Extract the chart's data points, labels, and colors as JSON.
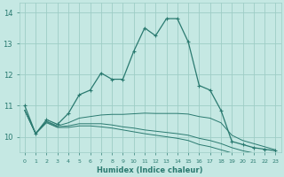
{
  "title": "",
  "xlabel": "Humidex (Indice chaleur)",
  "ylabel": "",
  "bg_color": "#c5e8e3",
  "grid_color": "#9ecdc6",
  "line_color": "#2a7a70",
  "xlim": [
    -0.5,
    23.5
  ],
  "ylim": [
    9.5,
    14.3
  ],
  "yticks": [
    10,
    11,
    12,
    13,
    14
  ],
  "xticks": [
    0,
    1,
    2,
    3,
    4,
    5,
    6,
    7,
    8,
    9,
    10,
    11,
    12,
    13,
    14,
    15,
    16,
    17,
    18,
    19,
    20,
    21,
    22,
    23
  ],
  "series": [
    {
      "x": [
        0,
        1,
        2,
        3,
        4,
        5,
        6,
        7,
        8,
        9,
        10,
        11,
        12,
        13,
        14,
        15,
        16,
        17,
        18,
        19,
        20,
        21,
        22,
        23
      ],
      "y": [
        11.0,
        10.1,
        10.55,
        10.4,
        10.75,
        11.35,
        11.5,
        12.05,
        11.85,
        11.85,
        12.75,
        13.5,
        13.25,
        13.8,
        13.8,
        13.05,
        11.65,
        11.5,
        10.85,
        9.85,
        9.75,
        9.65,
        9.6,
        9.55
      ],
      "marker": true
    },
    {
      "x": [
        0,
        1,
        2,
        3,
        4,
        5,
        6,
        7,
        8,
        9,
        10,
        11,
        12,
        13,
        14,
        15,
        16,
        17,
        18,
        19,
        20,
        21,
        22,
        23
      ],
      "y": [
        10.85,
        10.1,
        10.5,
        10.35,
        10.45,
        10.6,
        10.65,
        10.7,
        10.72,
        10.72,
        10.74,
        10.76,
        10.75,
        10.75,
        10.75,
        10.73,
        10.65,
        10.6,
        10.45,
        10.05,
        9.88,
        9.78,
        9.68,
        9.58
      ],
      "marker": false
    },
    {
      "x": [
        0,
        1,
        2,
        3,
        4,
        5,
        6,
        7,
        8,
        9,
        10,
        11,
        12,
        13,
        14,
        15,
        16,
        17,
        18,
        19,
        20,
        21,
        22,
        23
      ],
      "y": [
        10.85,
        10.1,
        10.48,
        10.32,
        10.35,
        10.42,
        10.42,
        10.42,
        10.38,
        10.32,
        10.28,
        10.22,
        10.18,
        10.14,
        10.1,
        10.05,
        9.95,
        9.88,
        9.78,
        9.65,
        9.55,
        9.48,
        9.42,
        9.38
      ],
      "marker": false
    },
    {
      "x": [
        0,
        1,
        2,
        3,
        4,
        5,
        6,
        7,
        8,
        9,
        10,
        11,
        12,
        13,
        14,
        15,
        16,
        17,
        18,
        19,
        20,
        21,
        22,
        23
      ],
      "y": [
        10.85,
        10.1,
        10.45,
        10.3,
        10.3,
        10.35,
        10.35,
        10.32,
        10.28,
        10.22,
        10.16,
        10.1,
        10.05,
        10.0,
        9.95,
        9.88,
        9.75,
        9.68,
        9.58,
        9.48,
        9.4,
        9.32,
        9.28,
        9.25
      ],
      "marker": false
    }
  ]
}
